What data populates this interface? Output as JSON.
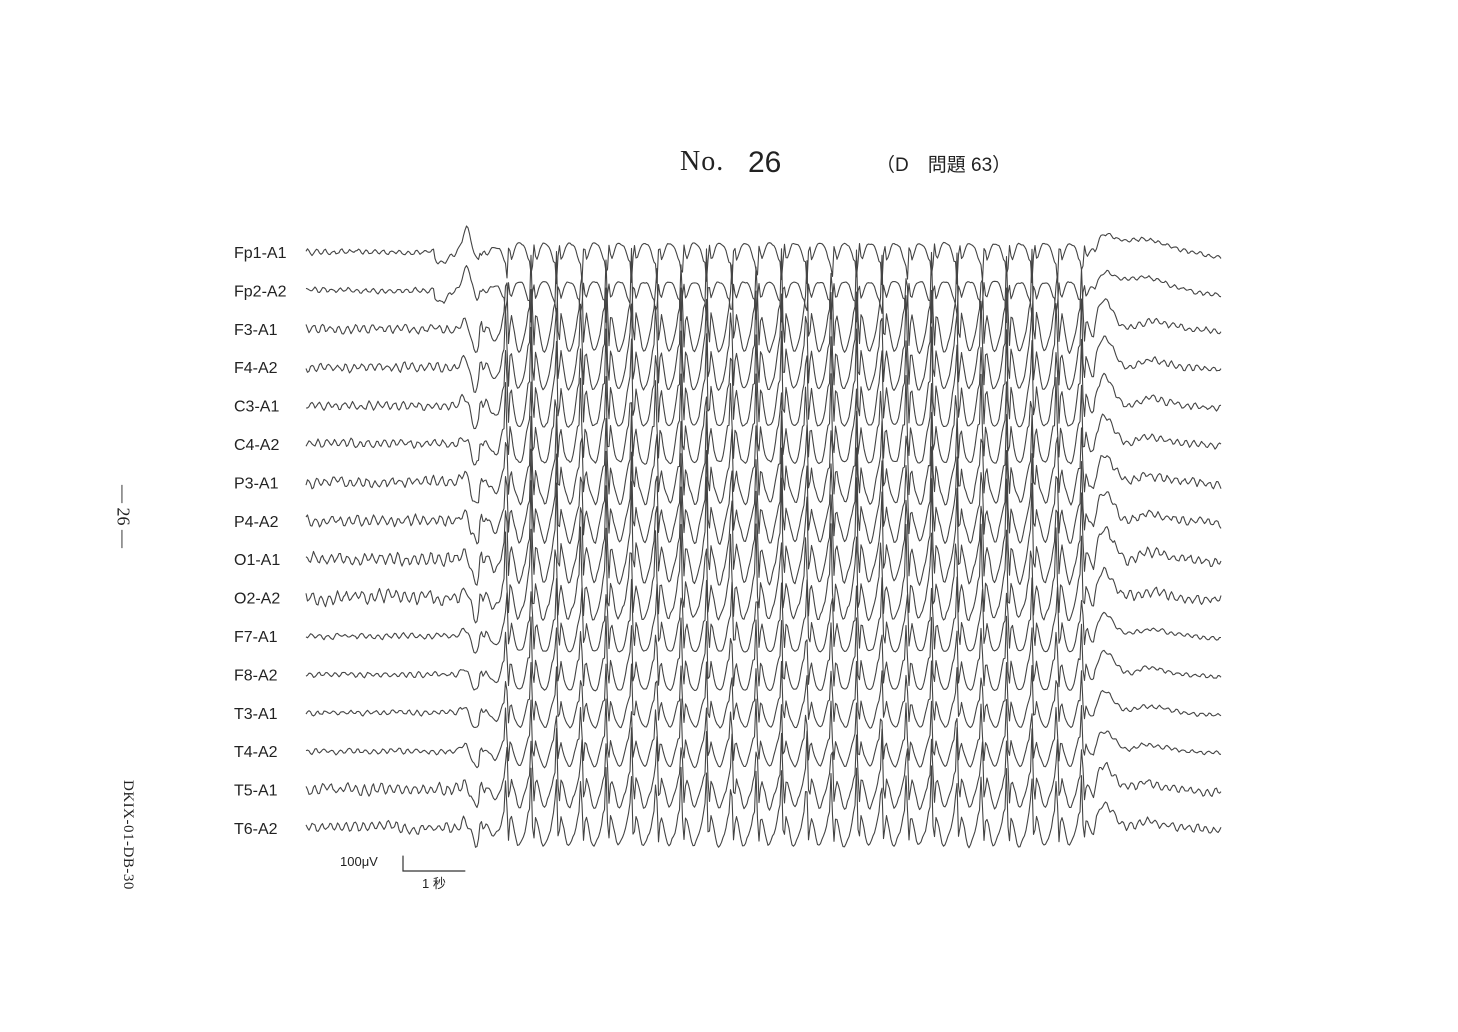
{
  "header": {
    "no_label": "No.",
    "number": "26",
    "reference": "（D　問題 63）"
  },
  "side": {
    "page_marker": "— 26 —",
    "doc_code": "DKIX-01-DB-30"
  },
  "chart_data": {
    "type": "line",
    "title": "",
    "xlabel": "",
    "ylabel": "",
    "montage": "referential",
    "time_range_s": [
      0,
      12.2
    ],
    "scale_bar": {
      "amplitude_label": "100μV",
      "time_label": "1 秒",
      "amplitude_uV": 100,
      "time_s": 1
    },
    "segments": [
      {
        "phase": "background",
        "start_s": 0,
        "end_s": 2.3
      },
      {
        "phase": "generalized spike-wave discharge",
        "start_s": 2.3,
        "end_s": 10.5,
        "frequency_hz": 3
      },
      {
        "phase": "post-ictal",
        "start_s": 10.5,
        "end_s": 12.2
      }
    ],
    "series": [
      {
        "name": "Fp1-A1",
        "burst_amp_uV": 50,
        "pre_amp_uV": 5
      },
      {
        "name": "Fp2-A2",
        "burst_amp_uV": 50,
        "pre_amp_uV": 5
      },
      {
        "name": "F3-A1",
        "burst_amp_uV": 120,
        "pre_amp_uV": 8
      },
      {
        "name": "F4-A2",
        "burst_amp_uV": 120,
        "pre_amp_uV": 8
      },
      {
        "name": "C3-A1",
        "burst_amp_uV": 120,
        "pre_amp_uV": 8
      },
      {
        "name": "C4-A2",
        "burst_amp_uV": 110,
        "pre_amp_uV": 8
      },
      {
        "name": "P3-A1",
        "burst_amp_uV": 110,
        "pre_amp_uV": 10
      },
      {
        "name": "P4-A2",
        "burst_amp_uV": 110,
        "pre_amp_uV": 10
      },
      {
        "name": "O1-A1",
        "burst_amp_uV": 120,
        "pre_amp_uV": 12
      },
      {
        "name": "O2-A2",
        "burst_amp_uV": 110,
        "pre_amp_uV": 12
      },
      {
        "name": "F7-A1",
        "burst_amp_uV": 90,
        "pre_amp_uV": 5
      },
      {
        "name": "F8-A2",
        "burst_amp_uV": 90,
        "pre_amp_uV": 5
      },
      {
        "name": "T3-A1",
        "burst_amp_uV": 80,
        "pre_amp_uV": 5
      },
      {
        "name": "T4-A2",
        "burst_amp_uV": 80,
        "pre_amp_uV": 5
      },
      {
        "name": "T5-A1",
        "burst_amp_uV": 90,
        "pre_amp_uV": 10
      },
      {
        "name": "T6-A2",
        "burst_amp_uV": 90,
        "pre_amp_uV": 10
      }
    ]
  }
}
